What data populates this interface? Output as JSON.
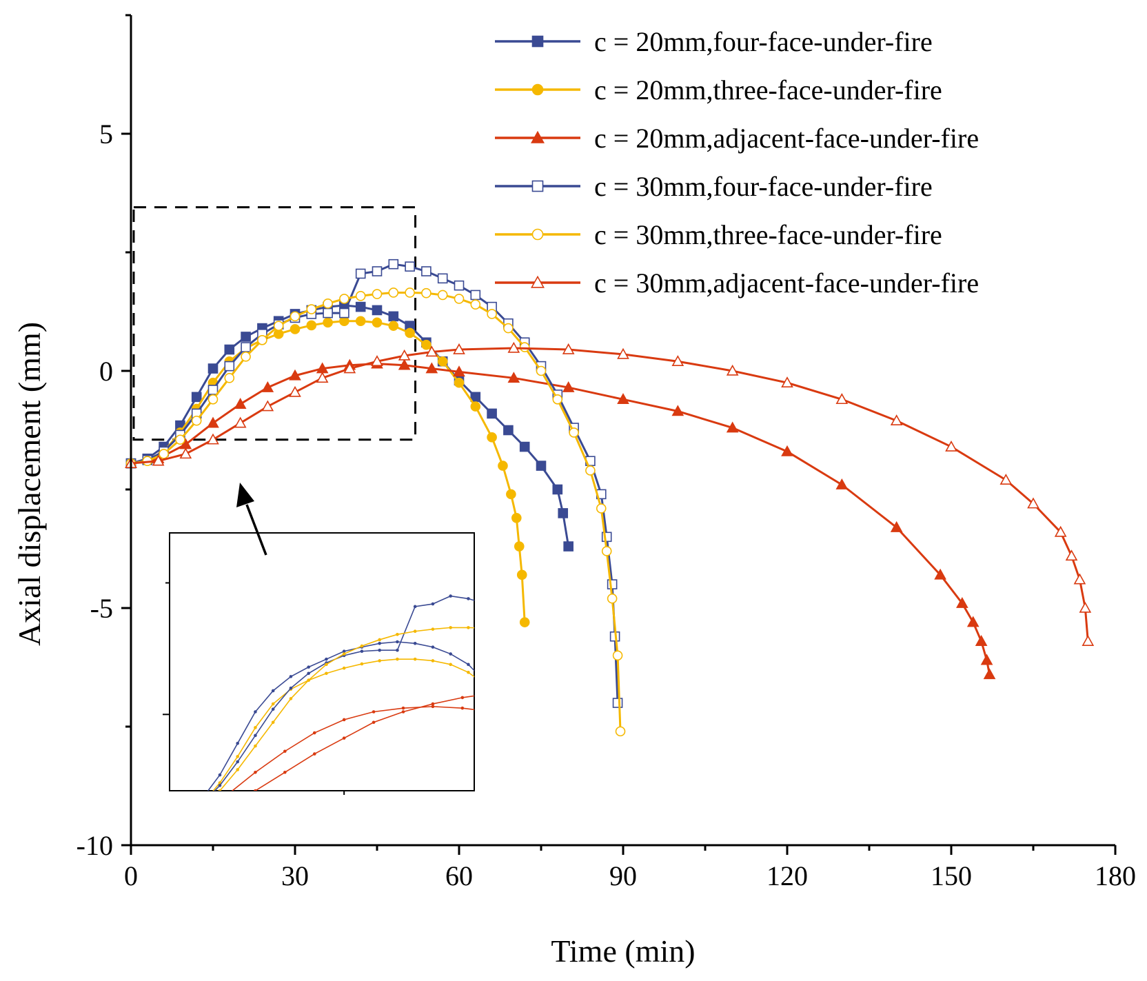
{
  "chart_data": {
    "type": "line",
    "xlabel": "Time (min)",
    "ylabel": "Axial displacement (mm)",
    "xlim": [
      0,
      180
    ],
    "ylim": [
      -10,
      7.5
    ],
    "xticks": [
      0,
      30,
      60,
      90,
      120,
      150,
      180
    ],
    "yticks": [
      -10,
      -5,
      0,
      5
    ],
    "ytick_labels": [
      "-10",
      "-5",
      "0",
      "5"
    ],
    "legend_position": "top-right",
    "colors": {
      "blue": "#3a4a93",
      "yellow": "#f5b800",
      "red": "#d93a10"
    },
    "zoom_region": {
      "x": [
        0.5,
        52
      ],
      "y": [
        -1.45,
        3.45
      ]
    },
    "series": [
      {
        "name": "c = 20mm,four-face-under-fire",
        "color": "#3a4a93",
        "marker": "square",
        "filled": true,
        "x": [
          0,
          3,
          6,
          9,
          12,
          15,
          18,
          21,
          24,
          27,
          30,
          33,
          36,
          39,
          42,
          45,
          48,
          51,
          54,
          57,
          60,
          63,
          66,
          69,
          72,
          75,
          78,
          79,
          80
        ],
        "y": [
          -1.95,
          -1.85,
          -1.6,
          -1.15,
          -0.55,
          0.05,
          0.45,
          0.72,
          0.9,
          1.05,
          1.2,
          1.28,
          1.35,
          1.38,
          1.35,
          1.28,
          1.15,
          0.95,
          0.6,
          0.2,
          -0.2,
          -0.55,
          -0.9,
          -1.25,
          -1.6,
          -2.0,
          -2.5,
          -3.0,
          -3.7
        ]
      },
      {
        "name": "c = 20mm,three-face-under-fire",
        "color": "#f5b800",
        "marker": "circle",
        "filled": true,
        "x": [
          0,
          3,
          6,
          9,
          12,
          15,
          18,
          21,
          24,
          27,
          30,
          33,
          36,
          39,
          42,
          45,
          48,
          51,
          54,
          57,
          60,
          63,
          66,
          68,
          69.5,
          70.5,
          71,
          71.5,
          72
        ],
        "y": [
          -1.95,
          -1.88,
          -1.7,
          -1.3,
          -0.8,
          -0.25,
          0.2,
          0.48,
          0.65,
          0.78,
          0.88,
          0.96,
          1.02,
          1.05,
          1.05,
          1.02,
          0.95,
          0.8,
          0.55,
          0.2,
          -0.25,
          -0.75,
          -1.4,
          -2.0,
          -2.6,
          -3.1,
          -3.7,
          -4.3,
          -5.3
        ]
      },
      {
        "name": "c = 20mm,adjacent-face-under-fire",
        "color": "#d93a10",
        "marker": "triangle",
        "filled": true,
        "x": [
          0,
          5,
          10,
          15,
          20,
          25,
          30,
          35,
          40,
          45,
          50,
          55,
          60,
          70,
          80,
          90,
          100,
          110,
          120,
          130,
          140,
          148,
          152,
          154,
          155.5,
          156.5,
          157
        ],
        "y": [
          -1.95,
          -1.85,
          -1.55,
          -1.1,
          -0.7,
          -0.35,
          -0.1,
          0.05,
          0.12,
          0.15,
          0.12,
          0.05,
          -0.02,
          -0.15,
          -0.35,
          -0.6,
          -0.85,
          -1.2,
          -1.7,
          -2.4,
          -3.3,
          -4.3,
          -4.9,
          -5.3,
          -5.7,
          -6.1,
          -6.4
        ]
      },
      {
        "name": "c = 30mm,four-face-under-fire",
        "color": "#3a4a93",
        "marker": "square",
        "filled": false,
        "x": [
          0,
          3,
          6,
          9,
          12,
          15,
          18,
          21,
          24,
          27,
          30,
          33,
          36,
          39,
          42,
          45,
          48,
          51,
          54,
          57,
          60,
          63,
          66,
          69,
          72,
          75,
          78,
          81,
          84,
          86,
          87,
          88,
          88.5,
          89
        ],
        "y": [
          -1.95,
          -1.88,
          -1.7,
          -1.35,
          -0.9,
          -0.4,
          0.1,
          0.5,
          0.78,
          0.98,
          1.12,
          1.2,
          1.22,
          1.22,
          2.05,
          2.1,
          2.25,
          2.2,
          2.1,
          1.95,
          1.8,
          1.6,
          1.35,
          1.0,
          0.6,
          0.1,
          -0.5,
          -1.2,
          -1.9,
          -2.6,
          -3.5,
          -4.5,
          -5.6,
          -7.0
        ]
      },
      {
        "name": "c = 30mm,three-face-under-fire",
        "color": "#f5b800",
        "marker": "circle",
        "filled": false,
        "x": [
          0,
          3,
          6,
          9,
          12,
          15,
          18,
          21,
          24,
          27,
          30,
          33,
          36,
          39,
          42,
          45,
          48,
          51,
          54,
          57,
          60,
          63,
          66,
          69,
          72,
          75,
          78,
          81,
          84,
          86,
          87,
          88,
          89,
          89.5
        ],
        "y": [
          -1.95,
          -1.9,
          -1.75,
          -1.45,
          -1.05,
          -0.6,
          -0.15,
          0.3,
          0.65,
          0.95,
          1.15,
          1.3,
          1.42,
          1.52,
          1.58,
          1.62,
          1.65,
          1.65,
          1.64,
          1.6,
          1.52,
          1.4,
          1.2,
          0.9,
          0.5,
          0.0,
          -0.6,
          -1.3,
          -2.1,
          -2.9,
          -3.8,
          -4.8,
          -6.0,
          -7.6
        ]
      },
      {
        "name": "c = 30mm,adjacent-face-under-fire",
        "color": "#d93a10",
        "marker": "triangle",
        "filled": false,
        "x": [
          0,
          5,
          10,
          15,
          20,
          25,
          30,
          35,
          40,
          45,
          50,
          55,
          60,
          70,
          80,
          90,
          100,
          110,
          120,
          130,
          140,
          150,
          160,
          165,
          170,
          172,
          173.5,
          174.5,
          175
        ],
        "y": [
          -1.95,
          -1.9,
          -1.75,
          -1.45,
          -1.1,
          -0.75,
          -0.45,
          -0.15,
          0.05,
          0.2,
          0.32,
          0.4,
          0.45,
          0.48,
          0.45,
          0.35,
          0.2,
          0.0,
          -0.25,
          -0.6,
          -1.05,
          -1.6,
          -2.3,
          -2.8,
          -3.4,
          -3.9,
          -4.4,
          -5.0,
          -5.7
        ]
      }
    ]
  }
}
